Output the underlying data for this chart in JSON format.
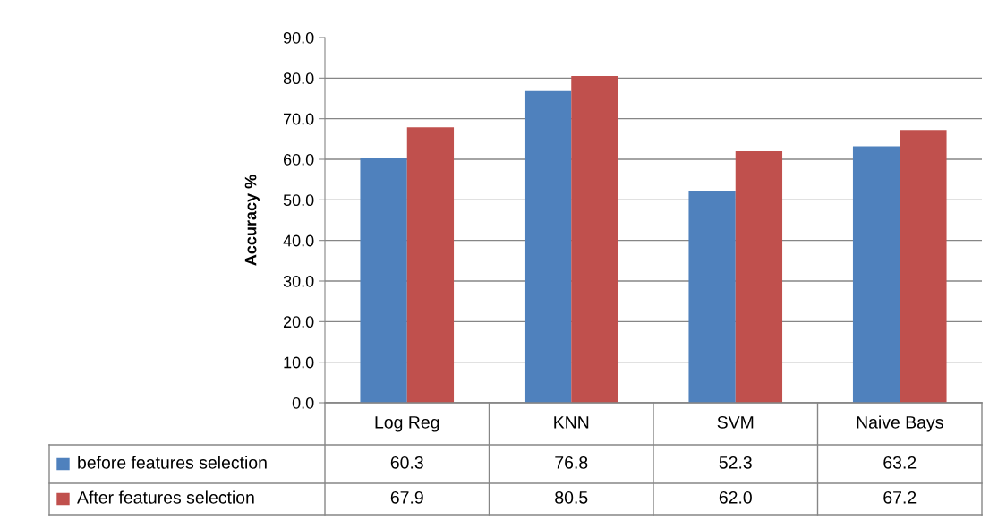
{
  "chart_data": {
    "type": "bar",
    "ylabel": "Accuracy %",
    "categories": [
      "Log Reg",
      "KNN",
      "SVM",
      "Naive Bays"
    ],
    "series": [
      {
        "name": "before features selection",
        "color": "#4f81bd",
        "values": [
          60.3,
          76.8,
          52.3,
          63.2
        ],
        "value_labels": [
          "60.3",
          "76.8",
          "52.3",
          "63.2"
        ]
      },
      {
        "name": "After features selection",
        "color": "#c0504d",
        "values": [
          67.9,
          80.5,
          62.0,
          67.2
        ],
        "value_labels": [
          "67.9",
          "80.5",
          "62.0",
          "67.2"
        ]
      }
    ],
    "ylim": [
      0,
      90
    ],
    "yticks": [
      {
        "value": 0,
        "label": "0.0"
      },
      {
        "value": 10,
        "label": "10.0"
      },
      {
        "value": 20,
        "label": "20.0"
      },
      {
        "value": 30,
        "label": "30.0"
      },
      {
        "value": 40,
        "label": "40.0"
      },
      {
        "value": 50,
        "label": "50.0"
      },
      {
        "value": 60,
        "label": "60.0"
      },
      {
        "value": 70,
        "label": "70.0"
      },
      {
        "value": 80,
        "label": "80.0"
      },
      {
        "value": 90,
        "label": "90.0"
      }
    ],
    "grid": "y",
    "legend": "bottom"
  }
}
